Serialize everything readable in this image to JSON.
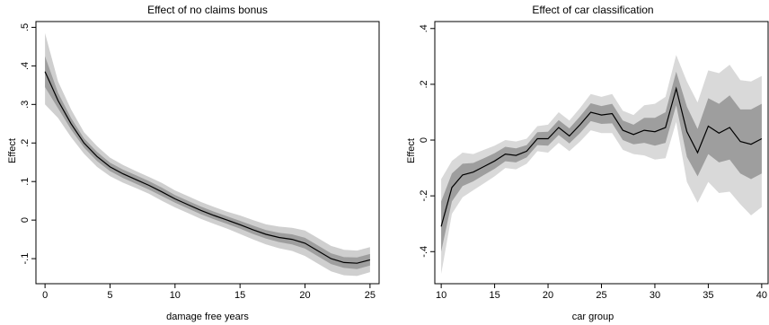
{
  "chart_data": [
    {
      "type": "line",
      "title": "Effect of no claims bonus",
      "xlabel": "damage free years",
      "ylabel": "Effect",
      "xlim": [
        -0.7,
        25.7
      ],
      "ylim": [
        -0.165,
        0.515
      ],
      "xticks": [
        0,
        5,
        10,
        15,
        20,
        25
      ],
      "xtick_labels": [
        "0",
        "5",
        "10",
        "15",
        "20",
        "25"
      ],
      "yticks": [
        -0.1,
        0,
        0.1,
        0.2,
        0.3,
        0.4,
        0.5
      ],
      "ytick_labels": [
        "-.1",
        "0",
        ".1",
        ".2",
        ".3",
        ".4",
        ".5"
      ],
      "grid": false,
      "band_colors": [
        "#cfcfcf",
        "#9e9e9e"
      ],
      "line_color": "#000000",
      "x": [
        0,
        1,
        2,
        3,
        4,
        5,
        6,
        7,
        8,
        9,
        10,
        11,
        12,
        13,
        14,
        15,
        16,
        17,
        18,
        19,
        20,
        21,
        22,
        23,
        24,
        25
      ],
      "series": [
        {
          "name": "",
          "role": "estimate",
          "values": [
            0.385,
            0.31,
            0.25,
            0.2,
            0.165,
            0.138,
            0.12,
            0.105,
            0.09,
            0.073,
            0.055,
            0.04,
            0.025,
            0.012,
            0.0,
            -0.012,
            -0.025,
            -0.037,
            -0.045,
            -0.05,
            -0.06,
            -0.08,
            -0.1,
            -0.11,
            -0.112,
            -0.103
          ]
        },
        {
          "name": "",
          "role": "inner_lower",
          "values": [
            0.345,
            0.29,
            0.235,
            0.188,
            0.153,
            0.127,
            0.109,
            0.094,
            0.079,
            0.062,
            0.045,
            0.03,
            0.015,
            0.002,
            -0.01,
            -0.022,
            -0.036,
            -0.048,
            -0.057,
            -0.063,
            -0.074,
            -0.094,
            -0.114,
            -0.124,
            -0.127,
            -0.118
          ]
        },
        {
          "name": "",
          "role": "inner_upper",
          "values": [
            0.425,
            0.33,
            0.265,
            0.212,
            0.177,
            0.149,
            0.131,
            0.116,
            0.101,
            0.084,
            0.065,
            0.05,
            0.035,
            0.022,
            0.01,
            -0.002,
            -0.014,
            -0.026,
            -0.033,
            -0.037,
            -0.046,
            -0.066,
            -0.086,
            -0.096,
            -0.097,
            -0.088
          ]
        },
        {
          "name": "",
          "role": "outer_lower",
          "values": [
            0.3,
            0.265,
            0.215,
            0.172,
            0.138,
            0.114,
            0.097,
            0.083,
            0.068,
            0.05,
            0.033,
            0.018,
            0.003,
            -0.01,
            -0.022,
            -0.036,
            -0.05,
            -0.063,
            -0.073,
            -0.08,
            -0.093,
            -0.113,
            -0.133,
            -0.143,
            -0.145,
            -0.135
          ]
        },
        {
          "name": "",
          "role": "outer_upper",
          "values": [
            0.485,
            0.36,
            0.287,
            0.228,
            0.192,
            0.162,
            0.143,
            0.127,
            0.112,
            0.096,
            0.077,
            0.062,
            0.047,
            0.034,
            0.022,
            0.012,
            0.0,
            -0.011,
            -0.017,
            -0.02,
            -0.027,
            -0.047,
            -0.067,
            -0.077,
            -0.079,
            -0.07
          ]
        }
      ]
    },
    {
      "type": "line",
      "title": "Effect of car classification",
      "xlabel": "car group",
      "ylabel": "Effect",
      "xlim": [
        9.4,
        40.6
      ],
      "ylim": [
        -0.515,
        0.425
      ],
      "xticks": [
        10,
        15,
        20,
        25,
        30,
        35,
        40
      ],
      "xtick_labels": [
        "10",
        "15",
        "20",
        "25",
        "30",
        "35",
        "40"
      ],
      "yticks": [
        -0.4,
        -0.2,
        0,
        0.2,
        0.4
      ],
      "ytick_labels": [
        "-.4",
        "-.2",
        "0",
        ".2",
        ".4"
      ],
      "grid": false,
      "band_colors": [
        "#d9d9d9",
        "#9e9e9e"
      ],
      "line_color": "#000000",
      "x": [
        10,
        11,
        12,
        13,
        14,
        15,
        16,
        17,
        18,
        19,
        20,
        21,
        22,
        23,
        24,
        25,
        26,
        27,
        28,
        29,
        30,
        31,
        32,
        33,
        34,
        35,
        36,
        37,
        38,
        39,
        40
      ],
      "series": [
        {
          "name": "",
          "role": "estimate",
          "values": [
            -0.31,
            -0.17,
            -0.125,
            -0.115,
            -0.095,
            -0.075,
            -0.05,
            -0.055,
            -0.04,
            0.005,
            0.005,
            0.045,
            0.015,
            0.055,
            0.1,
            0.09,
            0.095,
            0.035,
            0.02,
            0.035,
            0.03,
            0.045,
            0.185,
            0.03,
            -0.045,
            0.05,
            0.025,
            0.045,
            -0.005,
            -0.015,
            0.005
          ]
        },
        {
          "name": "",
          "role": "inner_lower",
          "values": [
            -0.4,
            -0.22,
            -0.165,
            -0.148,
            -0.125,
            -0.103,
            -0.076,
            -0.08,
            -0.062,
            -0.018,
            -0.02,
            0.018,
            -0.012,
            0.025,
            0.068,
            0.058,
            0.06,
            0.0,
            -0.015,
            -0.01,
            -0.02,
            -0.01,
            0.125,
            -0.06,
            -0.13,
            -0.05,
            -0.08,
            -0.07,
            -0.12,
            -0.14,
            -0.12
          ]
        },
        {
          "name": "",
          "role": "inner_upper",
          "values": [
            -0.22,
            -0.12,
            -0.085,
            -0.082,
            -0.065,
            -0.047,
            -0.024,
            -0.03,
            -0.018,
            0.028,
            0.03,
            0.072,
            0.042,
            0.085,
            0.132,
            0.122,
            0.13,
            0.07,
            0.055,
            0.08,
            0.08,
            0.1,
            0.245,
            0.12,
            0.04,
            0.15,
            0.13,
            0.16,
            0.11,
            0.11,
            0.13
          ]
        },
        {
          "name": "",
          "role": "outer_lower",
          "values": [
            -0.48,
            -0.265,
            -0.205,
            -0.18,
            -0.155,
            -0.13,
            -0.1,
            -0.105,
            -0.085,
            -0.04,
            -0.045,
            -0.01,
            -0.04,
            -0.005,
            0.035,
            0.025,
            0.025,
            -0.035,
            -0.05,
            -0.055,
            -0.07,
            -0.065,
            0.065,
            -0.15,
            -0.225,
            -0.15,
            -0.19,
            -0.185,
            -0.23,
            -0.27,
            -0.24
          ]
        },
        {
          "name": "",
          "role": "outer_upper",
          "values": [
            -0.14,
            -0.075,
            -0.045,
            -0.05,
            -0.035,
            -0.02,
            0.0,
            -0.005,
            0.005,
            0.05,
            0.055,
            0.1,
            0.07,
            0.115,
            0.165,
            0.155,
            0.165,
            0.105,
            0.09,
            0.125,
            0.13,
            0.155,
            0.305,
            0.21,
            0.135,
            0.25,
            0.24,
            0.27,
            0.215,
            0.21,
            0.23
          ]
        }
      ]
    }
  ]
}
